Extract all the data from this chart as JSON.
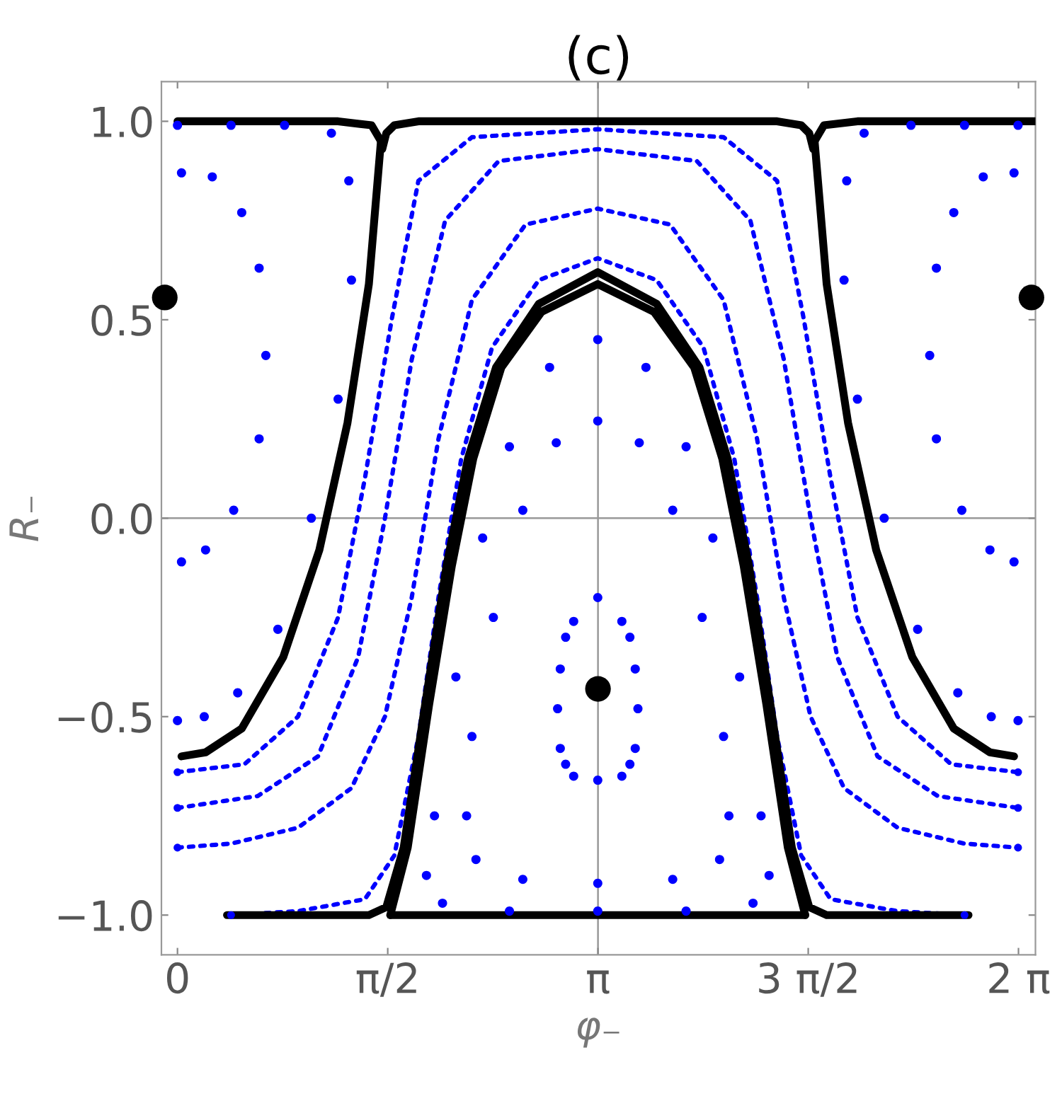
{
  "chart_data": {
    "type": "line",
    "title": "(c)",
    "xlabel": "φ₋",
    "ylabel": "R₋",
    "xlim": [
      -0.12,
      6.41
    ],
    "ylim": [
      -1.1,
      1.1
    ],
    "xticks": [
      {
        "value": 0,
        "label": "0"
      },
      {
        "value": 1.5708,
        "label": "π/2"
      },
      {
        "value": 3.1416,
        "label": "π"
      },
      {
        "value": 4.7124,
        "label": "3 π/2"
      },
      {
        "value": 6.2832,
        "label": "2 π"
      }
    ],
    "yticks": [
      {
        "value": -1.0,
        "label": "−1.0"
      },
      {
        "value": -0.5,
        "label": "−0.5"
      },
      {
        "value": 0.0,
        "label": "0.0"
      },
      {
        "value": 0.5,
        "label": "0.5"
      },
      {
        "value": 1.0,
        "label": "1.0"
      }
    ],
    "grid": false,
    "legend": false,
    "ref_lines": [
      {
        "axis": "x",
        "value": 3.1416,
        "color": "#999999"
      },
      {
        "axis": "y",
        "value": 0.0,
        "color": "#999999"
      }
    ],
    "series": [
      {
        "type": "scatter",
        "color": "#0000ff",
        "marker": "circle",
        "x": [
          0.03,
          0.26,
          0.48,
          0.61,
          0.66,
          0.61,
          0.42,
          0.21,
          0.03
        ],
        "values": [
          0.87,
          0.86,
          0.77,
          0.63,
          0.41,
          0.2,
          0.02,
          -0.08,
          -0.11
        ]
      },
      {
        "type": "scatter",
        "color": "#0000ff",
        "marker": "circle",
        "x": [
          6.25,
          6.02,
          5.8,
          5.67,
          5.62,
          5.67,
          5.86,
          6.07,
          6.25
        ],
        "values": [
          0.87,
          0.86,
          0.77,
          0.63,
          0.41,
          0.2,
          0.02,
          -0.08,
          -0.11
        ]
      },
      {
        "type": "scatter",
        "color": "#0000ff",
        "marker": "circle",
        "x": [
          2.84,
          2.86,
          2.9,
          2.96,
          3.14,
          3.32,
          3.38,
          3.42,
          3.44,
          3.42,
          3.38,
          3.32,
          3.14,
          2.96,
          2.9,
          2.86
        ],
        "values": [
          -0.48,
          -0.58,
          -0.62,
          -0.65,
          -0.66,
          -0.65,
          -0.62,
          -0.58,
          -0.48,
          -0.38,
          -0.3,
          -0.26,
          -0.2,
          -0.26,
          -0.3,
          -0.38
        ]
      },
      {
        "type": "scatter",
        "color": "#0000ff",
        "marker": "circle",
        "x": [
          3.14,
          3.45,
          3.7,
          3.92,
          4.08,
          4.12,
          4.05,
          3.7,
          3.14,
          2.58,
          2.23,
          2.16,
          2.2,
          2.36,
          2.58,
          2.83
        ],
        "values": [
          0.245,
          0.19,
          0.02,
          -0.25,
          -0.55,
          -0.75,
          -0.86,
          -0.91,
          -0.92,
          -0.91,
          -0.86,
          -0.75,
          -0.55,
          -0.25,
          0.02,
          0.19
        ]
      },
      {
        "type": "scatter",
        "color": "#0000ff",
        "marker": "circle",
        "x": [
          3.14,
          3.5,
          3.8,
          4.0,
          4.2,
          4.36,
          4.42,
          4.3,
          3.8,
          3.14,
          2.48,
          1.98,
          1.86,
          1.92,
          2.08,
          2.28,
          2.48,
          2.78
        ],
        "values": [
          0.45,
          0.38,
          0.18,
          -0.05,
          -0.4,
          -0.75,
          -0.9,
          -0.97,
          -0.99,
          -0.99,
          -0.99,
          -0.97,
          -0.9,
          -0.75,
          -0.4,
          -0.05,
          0.18,
          0.38
        ]
      },
      {
        "type": "scatter",
        "color": "#0000ff",
        "marker": "circle",
        "x": [
          0.0,
          0.4,
          0.8,
          1.15,
          1.28,
          1.3,
          1.2,
          1.0,
          0.75,
          0.45,
          0.2,
          0.0
        ],
        "values": [
          0.99,
          0.99,
          0.99,
          0.97,
          0.85,
          0.6,
          0.3,
          0.0,
          -0.28,
          -0.44,
          -0.5,
          -0.51
        ]
      },
      {
        "type": "scatter",
        "color": "#0000ff",
        "marker": "circle",
        "x": [
          6.28,
          5.88,
          5.48,
          5.13,
          5.0,
          4.98,
          5.08,
          5.28,
          5.53,
          5.83,
          6.08,
          6.28
        ],
        "values": [
          0.99,
          0.99,
          0.99,
          0.97,
          0.85,
          0.6,
          0.3,
          0.0,
          -0.28,
          -0.44,
          -0.5,
          -0.51
        ]
      },
      {
        "color": "#0000ff",
        "line_style": "dotted",
        "x": [
          0.4,
          0.9,
          1.4,
          1.62,
          1.8,
          1.95,
          2.12,
          2.35,
          2.7,
          3.14,
          3.58,
          3.93,
          4.16,
          4.33,
          4.48,
          4.66,
          4.88,
          5.38,
          5.88
        ],
        "values": [
          -1.0,
          -0.99,
          -0.96,
          -0.85,
          -0.55,
          -0.2,
          0.15,
          0.43,
          0.6,
          0.655,
          0.6,
          0.43,
          0.15,
          -0.2,
          -0.55,
          -0.85,
          -0.96,
          -0.99,
          -1.0
        ]
      },
      {
        "color": "#0000ff",
        "line_style": "dotted",
        "x": [
          0.0,
          0.4,
          0.9,
          1.3,
          1.55,
          1.75,
          1.95,
          2.2,
          2.6,
          3.14,
          3.68,
          4.08,
          4.33,
          4.53,
          4.73,
          4.98,
          5.38,
          5.88,
          6.28
        ],
        "values": [
          -0.83,
          -0.82,
          -0.78,
          -0.68,
          -0.5,
          -0.2,
          0.2,
          0.55,
          0.74,
          0.78,
          0.74,
          0.55,
          0.2,
          -0.2,
          -0.5,
          -0.68,
          -0.78,
          -0.82,
          -0.83
        ]
      },
      {
        "color": "#0000ff",
        "line_style": "dotted",
        "x": [
          0.0,
          0.6,
          1.05,
          1.35,
          1.55,
          1.75,
          2.0,
          2.4,
          3.14,
          3.88,
          4.28,
          4.53,
          4.73,
          4.93,
          5.23,
          5.68,
          6.28
        ],
        "values": [
          -0.73,
          -0.7,
          -0.6,
          -0.35,
          0.0,
          0.4,
          0.75,
          0.9,
          0.93,
          0.9,
          0.75,
          0.4,
          0.0,
          -0.35,
          -0.6,
          -0.7,
          -0.73
        ]
      },
      {
        "color": "#0000ff",
        "line_style": "dotted",
        "x": [
          0.0,
          0.5,
          0.9,
          1.2,
          1.4,
          1.6,
          1.8,
          2.2,
          3.14,
          4.08,
          4.48,
          4.68,
          4.88,
          5.08,
          5.38,
          5.78,
          6.28
        ],
        "values": [
          -0.64,
          -0.62,
          -0.5,
          -0.25,
          0.1,
          0.5,
          0.85,
          0.96,
          0.98,
          0.96,
          0.85,
          0.5,
          0.1,
          -0.25,
          -0.5,
          -0.62,
          -0.64
        ]
      },
      {
        "color": "#000000",
        "line_style": "solid",
        "x": [
          0.0,
          1.2,
          1.45,
          1.52
        ],
        "values": [
          1.0,
          1.0,
          0.99,
          0.95
        ]
      },
      {
        "color": "#000000",
        "line_style": "solid",
        "x": [
          1.52,
          1.43,
          1.27,
          1.06,
          0.79,
          0.48,
          0.21,
          0.03
        ],
        "values": [
          0.95,
          0.59,
          0.24,
          -0.08,
          -0.35,
          -0.53,
          -0.59,
          -0.6
        ]
      },
      {
        "color": "#000000",
        "line_style": "solid",
        "x": [
          6.41,
          5.08,
          4.83,
          4.76
        ],
        "values": [
          1.0,
          1.0,
          0.99,
          0.95
        ]
      },
      {
        "color": "#000000",
        "line_style": "solid",
        "x": [
          4.76,
          4.85,
          5.01,
          5.22,
          5.49,
          5.8,
          6.07,
          6.25
        ],
        "values": [
          0.95,
          0.59,
          0.24,
          -0.08,
          -0.35,
          -0.53,
          -0.59,
          -0.6
        ]
      },
      {
        "color": "#000000",
        "line_style": "solid",
        "x": [
          1.53,
          1.56,
          1.62,
          1.8,
          4.48,
          4.66,
          4.72,
          4.75
        ],
        "values": [
          0.93,
          0.97,
          0.99,
          1.0,
          1.0,
          0.99,
          0.97,
          0.93
        ]
      },
      {
        "color": "#000000",
        "line_style": "solid",
        "x": [
          0.37,
          1.43,
          1.56,
          1.69,
          1.85,
          2.01,
          2.17,
          2.38,
          2.7,
          3.14,
          3.58,
          3.9,
          4.11,
          4.27,
          4.43,
          4.59,
          4.72,
          4.85,
          5.91
        ],
        "values": [
          -1.0,
          -1.0,
          -0.98,
          -0.83,
          -0.47,
          -0.12,
          0.15,
          0.38,
          0.54,
          0.62,
          0.54,
          0.38,
          0.15,
          -0.12,
          -0.47,
          -0.83,
          -0.98,
          -1.0,
          -1.0
        ]
      },
      {
        "color": "#000000",
        "line_style": "solid",
        "x": [
          1.59,
          1.72,
          1.88,
          2.05,
          2.21,
          2.42,
          2.72,
          3.14,
          3.56,
          3.86,
          4.07,
          4.23,
          4.4,
          4.56,
          4.69
        ],
        "values": [
          -1.0,
          -0.83,
          -0.47,
          -0.12,
          0.15,
          0.38,
          0.52,
          0.59,
          0.52,
          0.38,
          0.15,
          -0.12,
          -0.47,
          -0.83,
          -1.0
        ]
      },
      {
        "color": "#000000",
        "line_style": "solid",
        "x": [
          1.59,
          4.69
        ],
        "values": [
          -1.0,
          -1.0
        ]
      },
      {
        "type": "scatter",
        "color": "#000000",
        "marker": "circle",
        "x": [
          -0.095,
          3.1416,
          6.38
        ],
        "values": [
          0.556,
          -0.43,
          0.556
        ]
      }
    ]
  }
}
